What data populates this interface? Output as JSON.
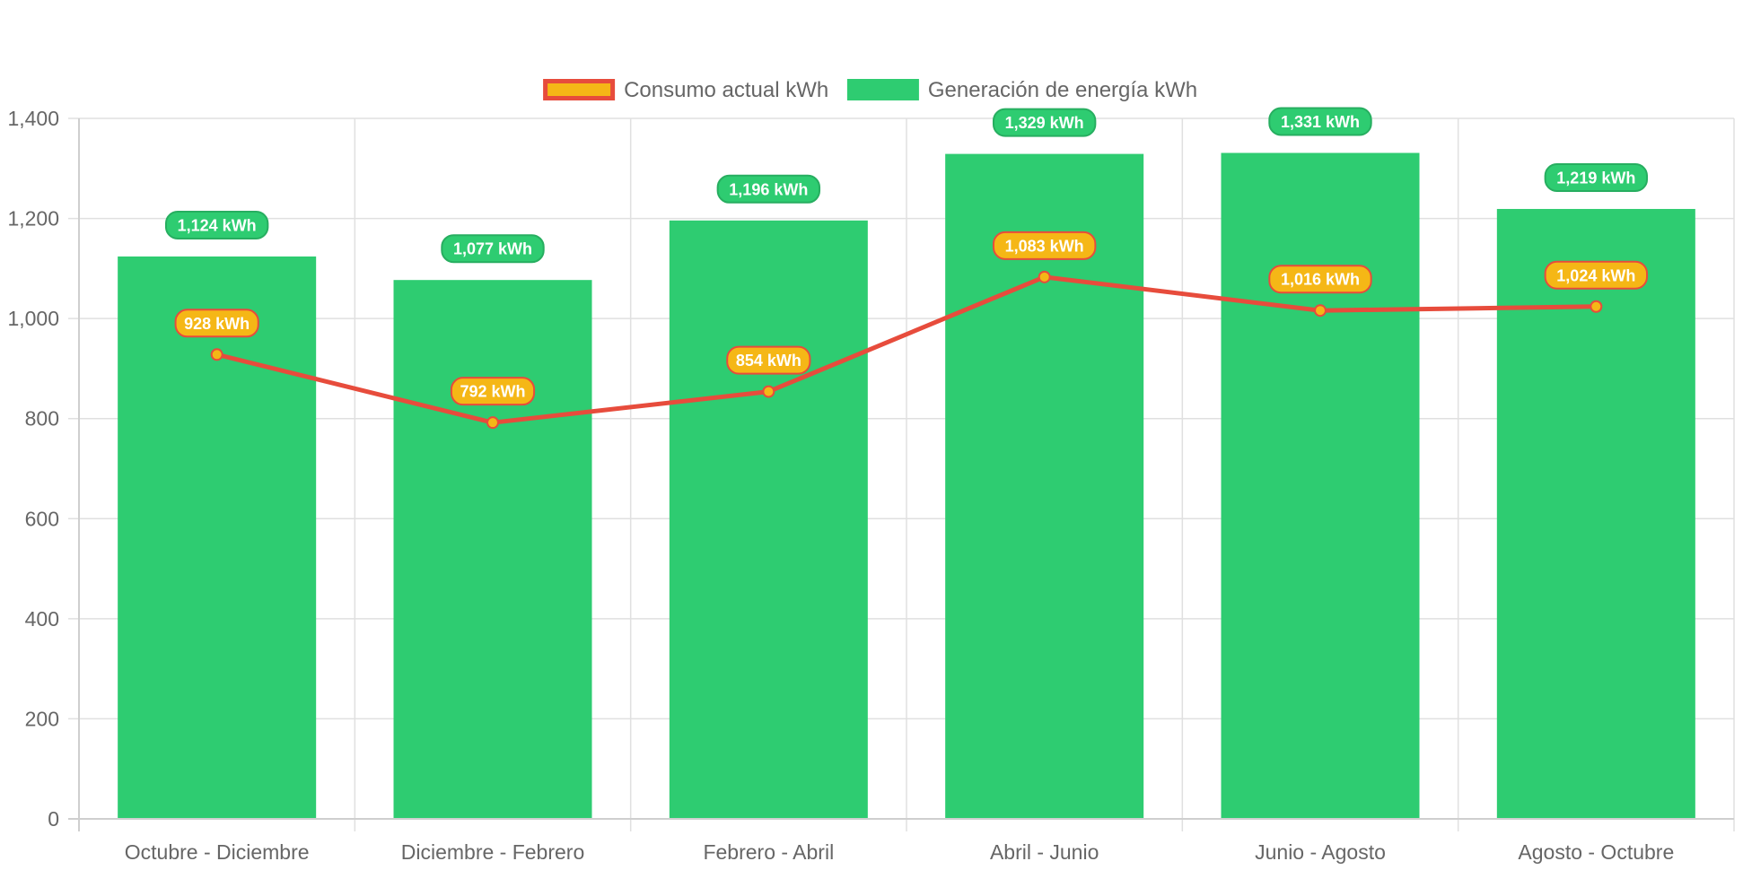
{
  "chart_data": {
    "type": "bar",
    "categories": [
      "Octubre - Diciembre",
      "Diciembre - Febrero",
      "Febrero - Abril",
      "Abril - Junio",
      "Junio - Agosto",
      "Agosto - Octubre"
    ],
    "series": [
      {
        "name": "Consumo actual kWh",
        "type": "line",
        "values": [
          928,
          792,
          854,
          1083,
          1016,
          1024
        ],
        "labels": [
          "928 kWh",
          "792 kWh",
          "854 kWh",
          "1,083 kWh",
          "1,016 kWh",
          "1,024 kWh"
        ],
        "color": "#e74c3c",
        "fill_color": "#f5b716"
      },
      {
        "name": "Generación de energía kWh",
        "type": "bar",
        "values": [
          1124,
          1077,
          1196,
          1329,
          1331,
          1219
        ],
        "labels": [
          "1,124 kWh",
          "1,077 kWh",
          "1,196 kWh",
          "1,329 kWh",
          "1,331 kWh",
          "1,219 kWh"
        ],
        "color": "#2ecc71",
        "label_border": "#27ae60"
      }
    ],
    "ylim": [
      0,
      1400
    ],
    "yticks": [
      0,
      200,
      400,
      600,
      800,
      1000,
      1200,
      1400
    ],
    "ytick_labels": [
      "0",
      "200",
      "400",
      "600",
      "800",
      "1,000",
      "1,200",
      "1,400"
    ],
    "grid": true,
    "legend_position": "top",
    "title": "",
    "xlabel": "",
    "ylabel": ""
  }
}
